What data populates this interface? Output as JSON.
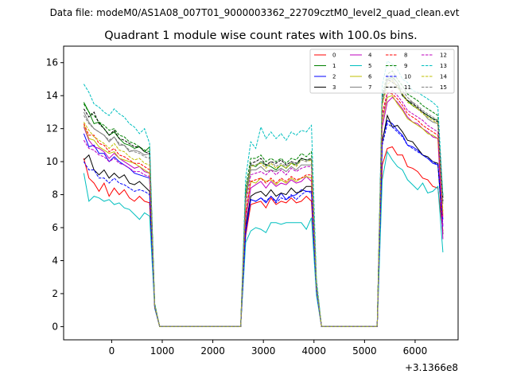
{
  "header": {
    "suptitle": "Data file: modeM0/AS1A08_007T01_9000003362_22709cztM0_level2_quad_clean.evt",
    "title": "Quadrant 1 module wise count rates with 100.0s bins.",
    "x_offset_label": "+3.1366e8"
  },
  "chart_data": {
    "type": "line",
    "title": "Quadrant 1 module wise count rates with 100.0s bins.",
    "xlabel": "",
    "ylabel": "",
    "x_offset": 313660000,
    "xlim": [
      -950,
      6850
    ],
    "ylim": [
      -0.8,
      17
    ],
    "x_ticks": [
      0,
      1000,
      2000,
      3000,
      4000,
      5000,
      6000
    ],
    "x_tick_labels": [
      "0",
      "1000",
      "2000",
      "3000",
      "4000",
      "5000",
      "6000"
    ],
    "y_ticks": [
      0,
      2,
      4,
      6,
      8,
      10,
      12,
      14,
      16
    ],
    "y_tick_labels": [
      "0",
      "2",
      "4",
      "6",
      "8",
      "10",
      "12",
      "14",
      "16"
    ],
    "grid": false,
    "legend": {
      "placement": "top-right",
      "columns": 4
    },
    "x": [
      -550,
      -450,
      -350,
      -250,
      -150,
      -50,
      50,
      150,
      250,
      350,
      450,
      550,
      650,
      750,
      850,
      950,
      1050,
      2550,
      2650,
      2750,
      2850,
      2950,
      3050,
      3150,
      3250,
      3350,
      3450,
      3550,
      3650,
      3750,
      3850,
      3950,
      4050,
      4150,
      5250,
      5350,
      5450,
      5550,
      5650,
      5750,
      5850,
      5950,
      6050,
      6150,
      6250,
      6350,
      6450,
      6550
    ],
    "series": [
      {
        "name": "0",
        "color": "#ff0000",
        "dash": "solid",
        "values": [
          10.2,
          9.0,
          8.7,
          8.2,
          8.7,
          7.9,
          8.4,
          8.0,
          8.3,
          7.8,
          7.6,
          7.9,
          7.6,
          7.5,
          1.2,
          0,
          0,
          0,
          5.5,
          7.4,
          7.5,
          7.6,
          7.2,
          7.8,
          7.4,
          7.6,
          7.5,
          7.8,
          7.5,
          7.6,
          7.9,
          7.6,
          2.1,
          0,
          0,
          9.8,
          10.8,
          10.9,
          10.4,
          10.4,
          9.7,
          9.6,
          9.4,
          9.0,
          8.9,
          8.5,
          8.4,
          5.8
        ]
      },
      {
        "name": "1",
        "color": "#008000",
        "dash": "solid",
        "values": [
          13.6,
          13.0,
          12.3,
          12.4,
          12.0,
          11.6,
          11.8,
          11.4,
          11.1,
          11.0,
          10.8,
          10.9,
          10.6,
          10.9,
          1.2,
          0,
          0,
          0,
          8.0,
          9.8,
          9.7,
          10.0,
          9.8,
          9.7,
          9.5,
          9.8,
          9.6,
          9.9,
          9.8,
          10.2,
          10.1,
          10.1,
          2.5,
          0,
          0,
          13.5,
          15.0,
          15.1,
          14.8,
          14.0,
          13.7,
          13.4,
          13.2,
          13.0,
          12.8,
          12.6,
          12.5,
          7.8
        ]
      },
      {
        "name": "2",
        "color": "#0000ff",
        "dash": "solid",
        "values": [
          11.7,
          10.9,
          11.0,
          10.5,
          10.5,
          10.0,
          10.3,
          10.0,
          9.8,
          9.6,
          9.3,
          9.2,
          9.1,
          9.0,
          1.3,
          0,
          0,
          0,
          5.7,
          7.7,
          7.6,
          7.8,
          7.5,
          7.9,
          7.6,
          8.1,
          7.7,
          7.9,
          8.0,
          8.3,
          8.2,
          8.2,
          2.2,
          0,
          0,
          11.3,
          12.5,
          12.3,
          11.9,
          11.6,
          11.0,
          10.9,
          10.7,
          10.4,
          10.2,
          9.9,
          9.8,
          6.5
        ]
      },
      {
        "name": "3",
        "color": "#000000",
        "dash": "solid",
        "values": [
          10.1,
          10.4,
          9.5,
          9.2,
          9.5,
          9.0,
          9.3,
          9.0,
          9.2,
          8.7,
          8.6,
          8.8,
          8.5,
          8.2,
          1.2,
          0,
          0,
          0,
          6.1,
          7.9,
          8.1,
          8.2,
          7.9,
          8.3,
          7.9,
          8.1,
          8.0,
          8.4,
          8.1,
          8.2,
          8.5,
          8.5,
          2.2,
          0,
          0,
          11.2,
          12.8,
          12.1,
          12.2,
          11.8,
          11.3,
          11.2,
          10.8,
          10.4,
          10.3,
          10.0,
          9.9,
          5.6
        ]
      },
      {
        "name": "4",
        "color": "#bf00bf",
        "dash": "solid",
        "values": [
          12.1,
          11.3,
          10.9,
          10.8,
          10.6,
          10.2,
          10.5,
          10.2,
          10.0,
          9.8,
          9.6,
          9.7,
          9.4,
          9.3,
          1.3,
          0,
          0,
          0,
          6.5,
          8.4,
          8.6,
          8.8,
          8.4,
          8.8,
          8.5,
          8.7,
          8.6,
          8.9,
          8.7,
          8.8,
          9.1,
          8.8,
          2.3,
          0,
          0,
          12.1,
          13.6,
          13.9,
          13.6,
          13.2,
          12.7,
          12.4,
          12.3,
          12.0,
          11.8,
          11.5,
          11.4,
          5.3
        ]
      },
      {
        "name": "5",
        "color": "#00bfbf",
        "dash": "solid",
        "values": [
          9.3,
          7.6,
          7.9,
          7.8,
          7.6,
          7.7,
          7.4,
          7.5,
          7.2,
          7.1,
          6.8,
          6.5,
          6.9,
          6.7,
          1.1,
          0,
          0,
          0,
          5.1,
          5.8,
          6.0,
          5.9,
          5.7,
          6.3,
          6.3,
          6.2,
          6.3,
          6.3,
          6.3,
          6.3,
          5.9,
          6.6,
          1.9,
          0,
          0,
          8.9,
          10.6,
          10.1,
          9.7,
          9.5,
          8.9,
          8.6,
          8.3,
          8.7,
          8.1,
          8.2,
          8.5,
          4.5
        ]
      },
      {
        "name": "6",
        "color": "#bfbf00",
        "dash": "solid",
        "values": [
          12.2,
          11.4,
          11.3,
          10.9,
          10.7,
          10.5,
          10.6,
          10.2,
          10.1,
          10.0,
          9.9,
          9.7,
          9.5,
          9.3,
          1.3,
          0,
          0,
          0,
          6.9,
          8.8,
          8.7,
          9.0,
          8.8,
          8.9,
          8.6,
          8.9,
          8.7,
          9.0,
          8.8,
          9.0,
          9.1,
          9.0,
          2.4,
          0,
          0,
          12.4,
          13.9,
          14.0,
          13.5,
          13.1,
          12.6,
          12.4,
          12.2,
          12.0,
          11.7,
          11.6,
          11.4,
          6.8
        ]
      },
      {
        "name": "7",
        "color": "#808080",
        "dash": "solid",
        "values": [
          13.0,
          12.4,
          12.0,
          11.8,
          11.6,
          11.2,
          11.5,
          11.0,
          11.0,
          10.6,
          10.7,
          10.6,
          10.4,
          10.5,
          1.2,
          0,
          0,
          0,
          7.7,
          9.5,
          9.5,
          9.7,
          9.4,
          9.5,
          9.4,
          9.6,
          9.4,
          9.7,
          9.5,
          9.8,
          9.8,
          9.8,
          2.5,
          0,
          0,
          13.6,
          14.9,
          15.0,
          14.5,
          14.1,
          13.7,
          13.6,
          13.2,
          13.0,
          12.6,
          12.4,
          12.3,
          7.8
        ]
      },
      {
        "name": "8",
        "color": "#ff0000",
        "dash": "dashed",
        "values": [
          12.3,
          11.6,
          11.6,
          11.1,
          11.0,
          10.6,
          10.8,
          10.4,
          10.3,
          10.1,
          9.9,
          9.9,
          9.7,
          9.5,
          1.2,
          0,
          0,
          0,
          6.8,
          8.8,
          8.9,
          9.0,
          8.7,
          9.0,
          8.7,
          9.0,
          8.8,
          9.1,
          8.9,
          9.0,
          9.2,
          9.2,
          2.3,
          0,
          0,
          12.9,
          14.2,
          14.1,
          13.8,
          13.4,
          12.9,
          12.7,
          12.5,
          12.2,
          12.0,
          11.8,
          11.6,
          6.6
        ]
      },
      {
        "name": "9",
        "color": "#008000",
        "dash": "dashed",
        "values": [
          13.5,
          13.0,
          12.8,
          12.4,
          12.2,
          11.9,
          12.0,
          11.6,
          11.5,
          11.2,
          11.1,
          10.9,
          10.7,
          10.6,
          1.4,
          0,
          0,
          0,
          8.4,
          10.2,
          10.2,
          10.4,
          10.0,
          10.2,
          10.0,
          10.2,
          9.9,
          10.2,
          10.1,
          10.5,
          10.3,
          10.6,
          2.6,
          0,
          0,
          14.0,
          15.3,
          15.5,
          15.0,
          14.6,
          14.1,
          13.9,
          13.7,
          13.4,
          13.2,
          13.0,
          12.8,
          7.9
        ]
      },
      {
        "name": "10",
        "color": "#0000ff",
        "dash": "dashed",
        "values": [
          10.0,
          9.5,
          9.5,
          9.0,
          9.0,
          8.7,
          9.0,
          8.7,
          8.6,
          8.4,
          8.2,
          8.3,
          8.2,
          8.0,
          1.2,
          0,
          0,
          0,
          5.9,
          7.7,
          7.6,
          7.8,
          7.6,
          7.9,
          7.5,
          7.8,
          7.7,
          8.0,
          7.7,
          8.0,
          8.2,
          8.1,
          2.2,
          0,
          0,
          11.0,
          12.3,
          12.1,
          11.8,
          11.5,
          11.0,
          10.8,
          10.6,
          10.4,
          10.2,
          10.0,
          9.8,
          6.0
        ]
      },
      {
        "name": "11",
        "color": "#000000",
        "dash": "dashed",
        "values": [
          13.2,
          12.7,
          13.0,
          12.3,
          12.0,
          11.6,
          11.9,
          11.4,
          11.3,
          11.1,
          10.9,
          10.9,
          10.6,
          10.5,
          1.3,
          0,
          0,
          0,
          7.9,
          9.9,
          10.0,
          10.2,
          9.8,
          10.0,
          9.9,
          10.1,
          9.8,
          10.0,
          9.9,
          10.2,
          10.1,
          10.2,
          2.5,
          0,
          0,
          13.9,
          15.0,
          14.8,
          14.6,
          14.0,
          13.7,
          13.5,
          13.3,
          13.0,
          12.8,
          12.6,
          12.4,
          7.6
        ]
      },
      {
        "name": "12",
        "color": "#bf00bf",
        "dash": "dashed",
        "values": [
          11.3,
          10.8,
          10.7,
          10.4,
          10.3,
          10.0,
          10.2,
          9.9,
          9.8,
          9.6,
          9.4,
          9.4,
          9.2,
          9.1,
          1.3,
          0,
          0,
          0,
          7.4,
          9.2,
          9.3,
          9.4,
          9.2,
          9.5,
          9.2,
          9.5,
          9.2,
          9.6,
          9.4,
          9.6,
          9.7,
          9.7,
          2.4,
          0,
          0,
          12.6,
          14.1,
          14.3,
          14.0,
          13.6,
          13.1,
          12.9,
          12.7,
          12.5,
          12.2,
          12.0,
          11.8,
          6.1
        ]
      },
      {
        "name": "13",
        "color": "#00bfbf",
        "dash": "dashed",
        "values": [
          14.7,
          14.2,
          13.5,
          13.3,
          13.0,
          12.8,
          13.2,
          12.9,
          12.7,
          12.3,
          12.1,
          11.7,
          12.0,
          11.1,
          1.4,
          0,
          0,
          0,
          9.0,
          11.2,
          10.8,
          12.1,
          11.4,
          11.8,
          11.4,
          11.7,
          11.3,
          11.8,
          11.6,
          11.9,
          11.8,
          12.2,
          2.9,
          0,
          0,
          14.6,
          16.1,
          15.9,
          15.6,
          15.0,
          14.8,
          14.3,
          14.2,
          14.0,
          13.8,
          13.6,
          13.3,
          7.9
        ]
      },
      {
        "name": "14",
        "color": "#bfbf00",
        "dash": "dashed",
        "values": [
          12.4,
          11.9,
          11.5,
          11.3,
          11.1,
          10.8,
          11.1,
          10.7,
          10.6,
          10.3,
          10.1,
          10.2,
          9.9,
          9.8,
          1.3,
          0,
          0,
          0,
          7.7,
          9.7,
          9.8,
          9.9,
          9.6,
          9.9,
          9.6,
          9.8,
          9.6,
          9.9,
          9.7,
          10.1,
          10.0,
          10.1,
          2.5,
          0,
          0,
          13.4,
          14.7,
          14.9,
          14.5,
          14.1,
          13.6,
          13.4,
          13.2,
          12.9,
          12.7,
          12.5,
          12.3,
          7.0
        ]
      },
      {
        "name": "15",
        "color": "#808080",
        "dash": "dashed",
        "values": [
          12.8,
          12.3,
          12.0,
          11.8,
          11.6,
          11.3,
          11.5,
          11.1,
          11.0,
          10.7,
          10.6,
          10.5,
          10.3,
          10.2,
          1.3,
          0,
          0,
          0,
          7.9,
          9.8,
          9.8,
          10.0,
          9.7,
          10.0,
          9.7,
          9.9,
          9.7,
          10.0,
          9.8,
          10.1,
          10.0,
          10.2,
          2.5,
          0,
          0,
          13.8,
          15.1,
          15.2,
          14.8,
          14.3,
          13.9,
          13.6,
          13.4,
          13.1,
          12.9,
          12.7,
          12.5,
          7.4
        ]
      }
    ]
  }
}
